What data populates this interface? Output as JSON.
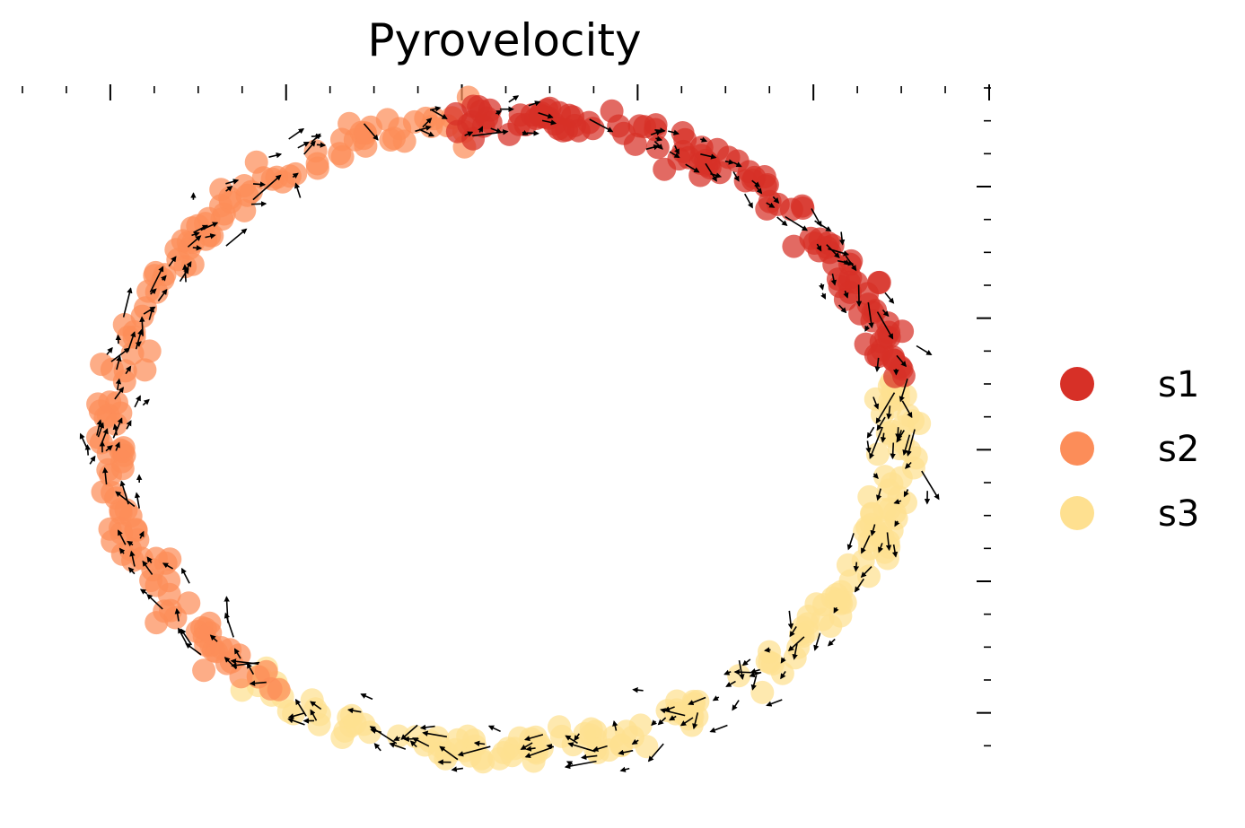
{
  "chart_data": {
    "type": "scatter",
    "title": "Pyrovelocity",
    "xlabel": "",
    "ylabel": "",
    "xlim": [
      -1.2,
      1.2
    ],
    "ylim": [
      -1.05,
      1.05
    ],
    "grid": false,
    "legend_position": "right",
    "overlay": "velocity-arrows",
    "series": [
      {
        "name": "s1",
        "color": "#d73027",
        "angle_range_deg": [
          10,
          100
        ],
        "count": 120
      },
      {
        "name": "s2",
        "color": "#fc8d59",
        "angle_range_deg": [
          95,
          235
        ],
        "count": 150
      },
      {
        "name": "s3",
        "color": "#fee090",
        "angle_range_deg": [
          -130,
          10
        ],
        "count": 170
      }
    ],
    "ellipse": {
      "cx": 0.0,
      "cy": 0.0,
      "rx": 1.0,
      "ry": 1.0
    }
  }
}
